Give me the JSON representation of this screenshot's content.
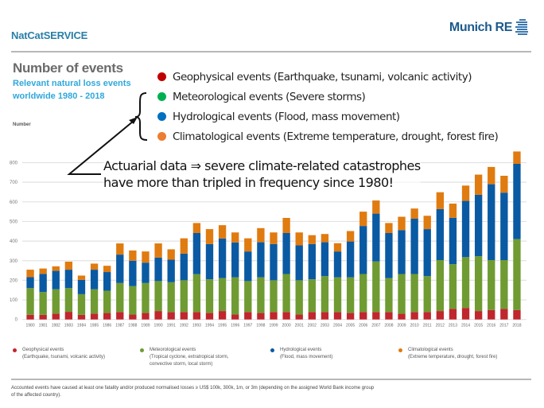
{
  "header": {
    "brand": "NatCatSERVICE",
    "logo_text": "Munich RE",
    "logo_icon": "munich-re-stripes-icon"
  },
  "title": "Number of events",
  "subtitle": "Relevant natural loss events worldwide 1980 - 2018",
  "overlay_legend": [
    {
      "label": "Geophysical events (Earthquake, tsunami, volcanic activity)",
      "color": "#c00000"
    },
    {
      "label": "Meteorological events (Severe storms)",
      "color": "#00b050"
    },
    {
      "label": "Hydrological events (Flood, mass movement)",
      "color": "#0070c0"
    },
    {
      "label": "Climatological events (Extreme temperature, drought, forest fire)",
      "color": "#ed7d31"
    }
  ],
  "annotation": {
    "line1": "Actuarial data ⇒ severe climate-related catastrophes",
    "line2": "have more than tripled in frequency since 1980!"
  },
  "chart_data": {
    "type": "bar",
    "stacked": true,
    "title": "Number of events",
    "ylabel": "Number",
    "xlabel": "",
    "ylim": [
      0,
      800
    ],
    "yticks": [
      0,
      100,
      200,
      300,
      400,
      500,
      600,
      700,
      800
    ],
    "grid": true,
    "legend_position": "bottom",
    "categories": [
      "1980",
      "1981",
      "1982",
      "1983",
      "1984",
      "1985",
      "1986",
      "1987",
      "1988",
      "1989",
      "1990",
      "1991",
      "1992",
      "1993",
      "1994",
      "1995",
      "1996",
      "1997",
      "1998",
      "1999",
      "2000",
      "2001",
      "2002",
      "2003",
      "2004",
      "2005",
      "2006",
      "2007",
      "2008",
      "2009",
      "2010",
      "2011",
      "2012",
      "2013",
      "2014",
      "2015",
      "2016",
      "2017",
      "2018"
    ],
    "series": [
      {
        "name": "Geophysical events",
        "color": "#c0262d",
        "values": [
          24,
          24,
          30,
          39,
          24,
          30,
          33,
          38,
          25,
          33,
          43,
          38,
          38,
          38,
          33,
          43,
          25,
          38,
          33,
          38,
          38,
          25,
          38,
          38,
          38,
          33,
          38,
          38,
          38,
          29,
          38,
          38,
          43,
          54,
          59,
          43,
          48,
          54,
          48
        ]
      },
      {
        "name": "Meteorological events",
        "color": "#6f9b32",
        "values": [
          136,
          116,
          124,
          121,
          105,
          124,
          114,
          148,
          145,
          153,
          153,
          152,
          162,
          193,
          172,
          168,
          190,
          158,
          182,
          162,
          194,
          175,
          167,
          183,
          177,
          182,
          194,
          258,
          173,
          203,
          194,
          183,
          260,
          228,
          259,
          280,
          255,
          249,
          362
        ]
      },
      {
        "name": "Hydrological events",
        "color": "#0a5aa3",
        "values": [
          56,
          93,
          94,
          94,
          73,
          100,
          95,
          145,
          130,
          104,
          120,
          115,
          136,
          210,
          180,
          202,
          178,
          151,
          179,
          185,
          209,
          178,
          180,
          173,
          132,
          183,
          245,
          244,
          230,
          224,
          282,
          240,
          260,
          237,
          287,
          313,
          387,
          344,
          384
        ]
      },
      {
        "name": "Climatological events",
        "color": "#e07b10",
        "values": [
          38,
          27,
          23,
          41,
          22,
          31,
          32,
          57,
          52,
          57,
          72,
          53,
          78,
          51,
          76,
          68,
          51,
          67,
          72,
          59,
          77,
          66,
          45,
          42,
          42,
          53,
          73,
          67,
          51,
          68,
          52,
          68,
          86,
          72,
          78,
          103,
          88,
          86,
          63
        ]
      }
    ]
  },
  "footer_legend": [
    {
      "title": "Geophysical events",
      "desc": "(Earthquake, tsunami, volcanic activity)",
      "color": "#c0262d"
    },
    {
      "title": "Meteorological events",
      "desc": "(Tropical cyclone, extratropical storm, convective storm, local storm)",
      "color": "#6f9b32"
    },
    {
      "title": "Hydrological events",
      "desc": "(Flood, mass movement)",
      "color": "#0a5aa3"
    },
    {
      "title": "Climatological events",
      "desc": "(Extreme temperature, drought, forest fire)",
      "color": "#e07b10"
    }
  ],
  "footnote": "Accounted events have caused at least one fatality and/or produced normalised losses ≥ US$ 100k, 300k, 1m, or 3m (depending on the assigned World Bank income group of the affected country)."
}
